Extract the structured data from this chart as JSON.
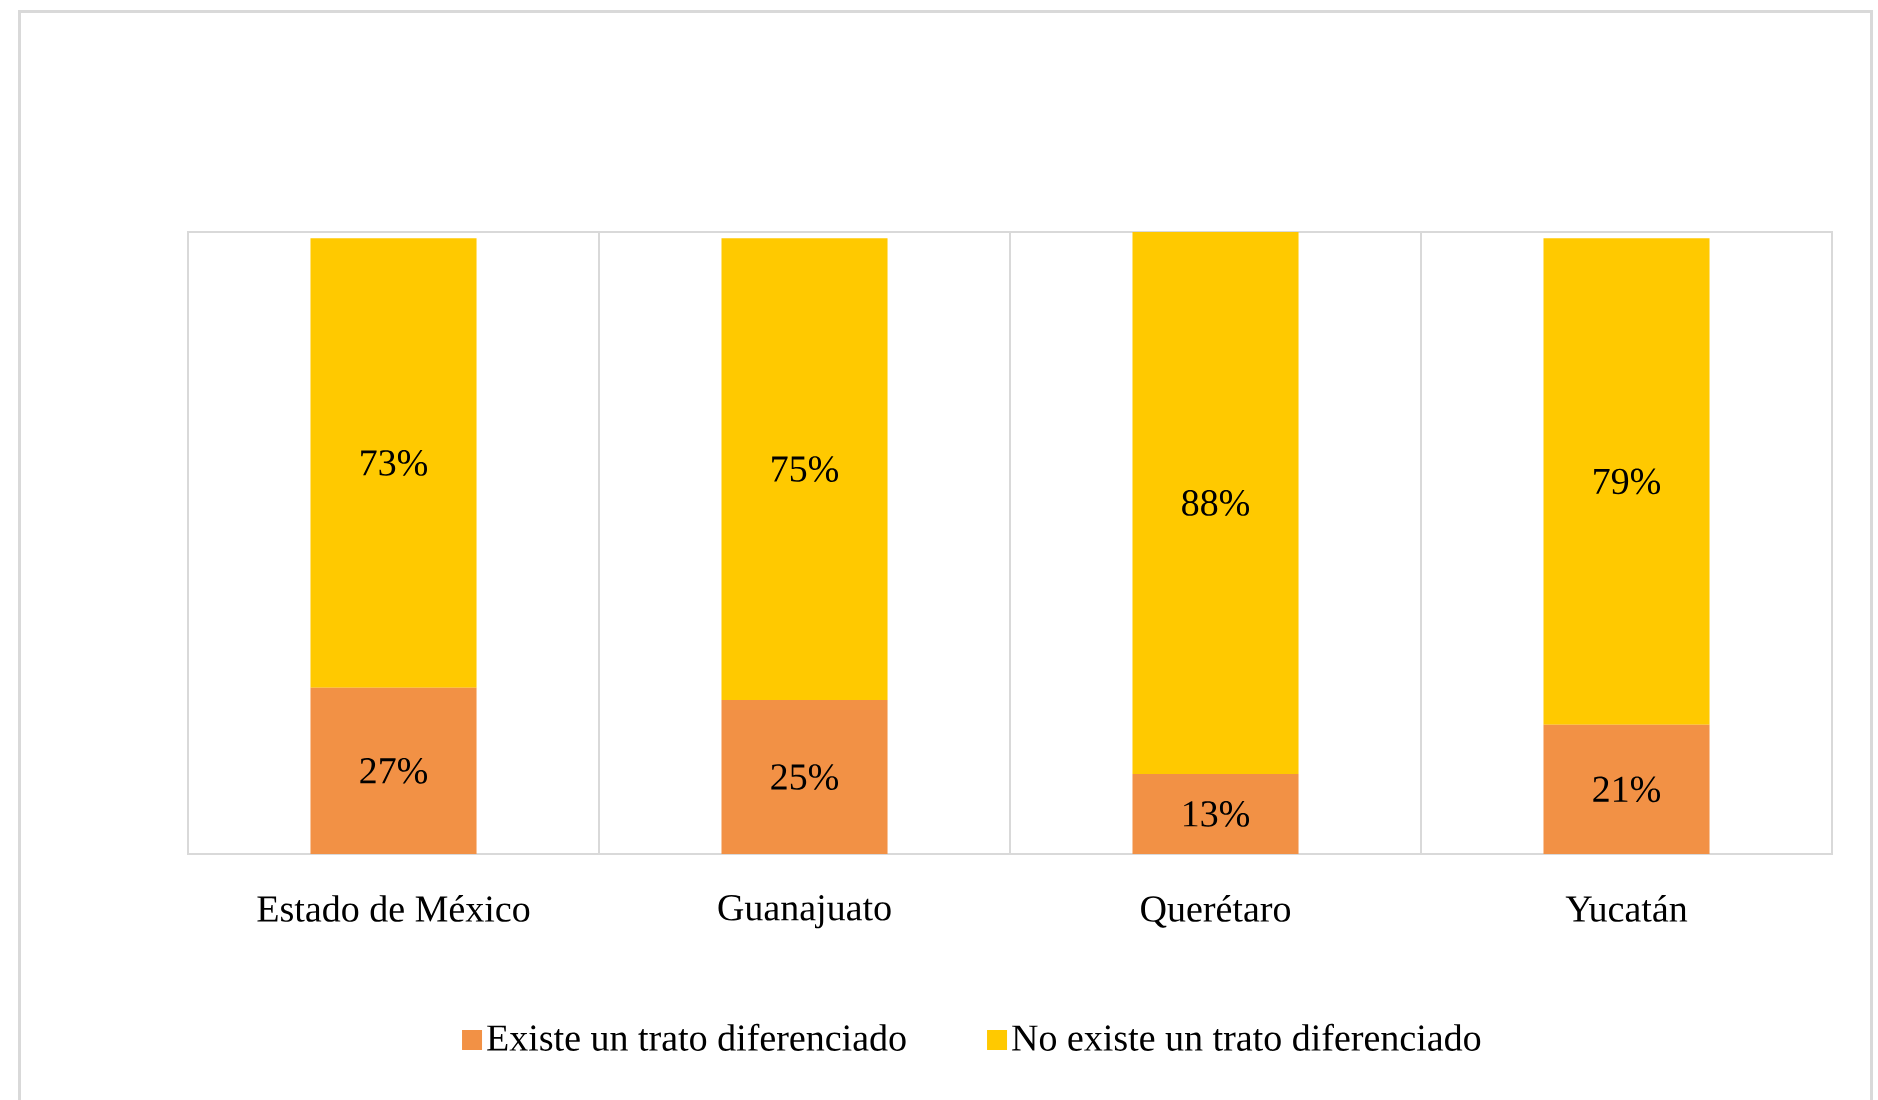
{
  "chart_data": {
    "type": "bar",
    "stacked": true,
    "categories": [
      "Estado de México",
      "Guanajuato",
      "Querétaro",
      "Yucatán"
    ],
    "series": [
      {
        "name": "Existe un trato diferenciado",
        "color": "#f29145",
        "values": [
          27,
          25,
          13,
          21
        ],
        "value_labels": [
          "27%",
          "25%",
          "13%",
          "21%"
        ]
      },
      {
        "name": "No existe un trato diferenciado",
        "color": "#ffc900",
        "values": [
          73,
          75,
          88,
          79
        ],
        "value_labels": [
          "73%",
          "75%",
          "88%",
          "79%"
        ]
      }
    ],
    "grid": "x",
    "legend": "bottom",
    "tick_labels": "x"
  }
}
